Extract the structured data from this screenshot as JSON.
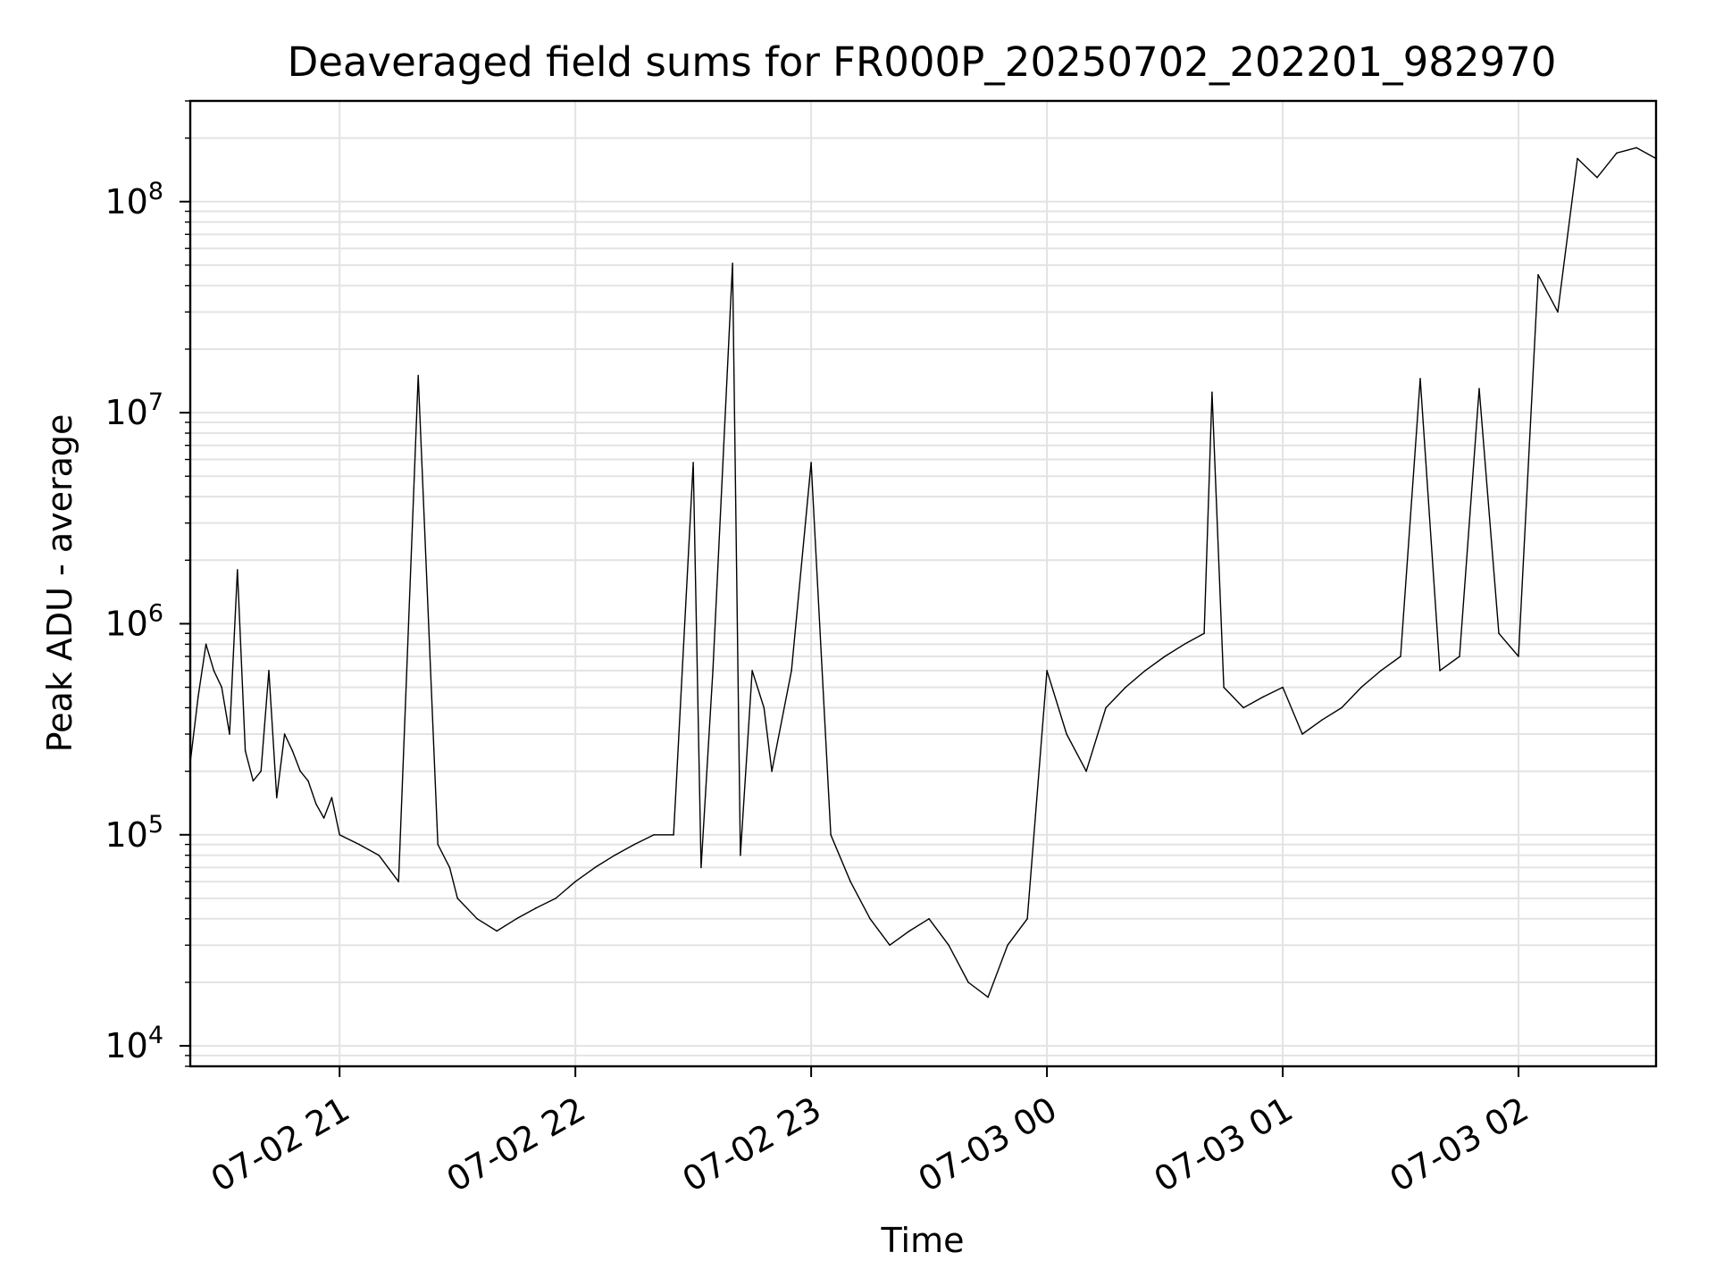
{
  "chart_data": {
    "type": "line",
    "title": "Deaveraged field sums for FR000P_20250702_202201_982970",
    "xlabel": "Time",
    "ylabel": "Peak ADU - average",
    "x_range": [
      "2025-07-02 20:22",
      "2025-07-03 02:35"
    ],
    "y_range": [
      8000,
      300000000
    ],
    "y_scale": "log",
    "grid": true,
    "x_ticks": [
      {
        "label": "07-02 21",
        "time": "2025-07-02 21:00"
      },
      {
        "label": "07-02 22",
        "time": "2025-07-02 22:00"
      },
      {
        "label": "07-02 23",
        "time": "2025-07-02 23:00"
      },
      {
        "label": "07-03 00",
        "time": "2025-07-03 00:00"
      },
      {
        "label": "07-03 01",
        "time": "2025-07-03 01:00"
      },
      {
        "label": "07-03 02",
        "time": "2025-07-03 02:00"
      }
    ],
    "y_ticks": [
      {
        "base": "10",
        "exp": "4",
        "value": 10000
      },
      {
        "base": "10",
        "exp": "5",
        "value": 100000
      },
      {
        "base": "10",
        "exp": "6",
        "value": 1000000
      },
      {
        "base": "10",
        "exp": "7",
        "value": 10000000
      },
      {
        "base": "10",
        "exp": "8",
        "value": 100000000
      }
    ],
    "line_color": "#000000",
    "series": [
      {
        "x": [
          "2025-07-02 20:22",
          "2025-07-02 20:24",
          "2025-07-02 20:26",
          "2025-07-02 20:28",
          "2025-07-02 20:30",
          "2025-07-02 20:32",
          "2025-07-02 20:34",
          "2025-07-02 20:36",
          "2025-07-02 20:38",
          "2025-07-02 20:40",
          "2025-07-02 20:42",
          "2025-07-02 20:44",
          "2025-07-02 20:46",
          "2025-07-02 20:48",
          "2025-07-02 20:50",
          "2025-07-02 20:52",
          "2025-07-02 20:54",
          "2025-07-02 20:56",
          "2025-07-02 20:58",
          "2025-07-02 21:00",
          "2025-07-02 21:05",
          "2025-07-02 21:10",
          "2025-07-02 21:15",
          "2025-07-02 21:20",
          "2025-07-02 21:25",
          "2025-07-02 21:28",
          "2025-07-02 21:30",
          "2025-07-02 21:35",
          "2025-07-02 21:40",
          "2025-07-02 21:45",
          "2025-07-02 21:50",
          "2025-07-02 21:55",
          "2025-07-02 22:00",
          "2025-07-02 22:05",
          "2025-07-02 22:10",
          "2025-07-02 22:15",
          "2025-07-02 22:20",
          "2025-07-02 22:25",
          "2025-07-02 22:30",
          "2025-07-02 22:32",
          "2025-07-02 22:35",
          "2025-07-02 22:40",
          "2025-07-02 22:42",
          "2025-07-02 22:45",
          "2025-07-02 22:48",
          "2025-07-02 22:50",
          "2025-07-02 22:55",
          "2025-07-02 23:00",
          "2025-07-02 23:05",
          "2025-07-02 23:10",
          "2025-07-02 23:15",
          "2025-07-02 23:20",
          "2025-07-02 23:25",
          "2025-07-02 23:30",
          "2025-07-02 23:35",
          "2025-07-02 23:40",
          "2025-07-02 23:45",
          "2025-07-02 23:50",
          "2025-07-02 23:55",
          "2025-07-03 00:00",
          "2025-07-03 00:05",
          "2025-07-03 00:10",
          "2025-07-03 00:15",
          "2025-07-03 00:20",
          "2025-07-03 00:25",
          "2025-07-03 00:30",
          "2025-07-03 00:35",
          "2025-07-03 00:40",
          "2025-07-03 00:42",
          "2025-07-03 00:45",
          "2025-07-03 00:50",
          "2025-07-03 00:55",
          "2025-07-03 01:00",
          "2025-07-03 01:05",
          "2025-07-03 01:10",
          "2025-07-03 01:15",
          "2025-07-03 01:20",
          "2025-07-03 01:25",
          "2025-07-03 01:30",
          "2025-07-03 01:35",
          "2025-07-03 01:40",
          "2025-07-03 01:45",
          "2025-07-03 01:50",
          "2025-07-03 01:55",
          "2025-07-03 02:00",
          "2025-07-03 02:05",
          "2025-07-03 02:10",
          "2025-07-03 02:15",
          "2025-07-03 02:20",
          "2025-07-03 02:25",
          "2025-07-03 02:30",
          "2025-07-03 02:35"
        ],
        "values": [
          220000,
          450000,
          800000,
          600000,
          500000,
          300000,
          1800000,
          250000,
          180000,
          200000,
          600000,
          150000,
          300000,
          250000,
          200000,
          180000,
          140000,
          120000,
          150000,
          100000,
          90000,
          80000,
          60000,
          15000000,
          90000,
          70000,
          50000,
          40000,
          35000,
          40000,
          45000,
          50000,
          60000,
          70000,
          80000,
          90000,
          100000,
          100000,
          5800000,
          70000,
          600000,
          51000000,
          80000,
          600000,
          400000,
          200000,
          600000,
          5800000,
          100000,
          60000,
          40000,
          30000,
          35000,
          40000,
          30000,
          20000,
          17000,
          30000,
          40000,
          600000,
          300000,
          200000,
          400000,
          500000,
          600000,
          700000,
          800000,
          900000,
          12500000,
          500000,
          400000,
          450000,
          500000,
          300000,
          350000,
          400000,
          500000,
          600000,
          700000,
          14500000,
          600000,
          700000,
          13000000,
          900000,
          700000,
          45000000,
          30000000,
          160000000,
          130000000,
          170000000,
          180000000,
          160000000
        ]
      }
    ]
  }
}
